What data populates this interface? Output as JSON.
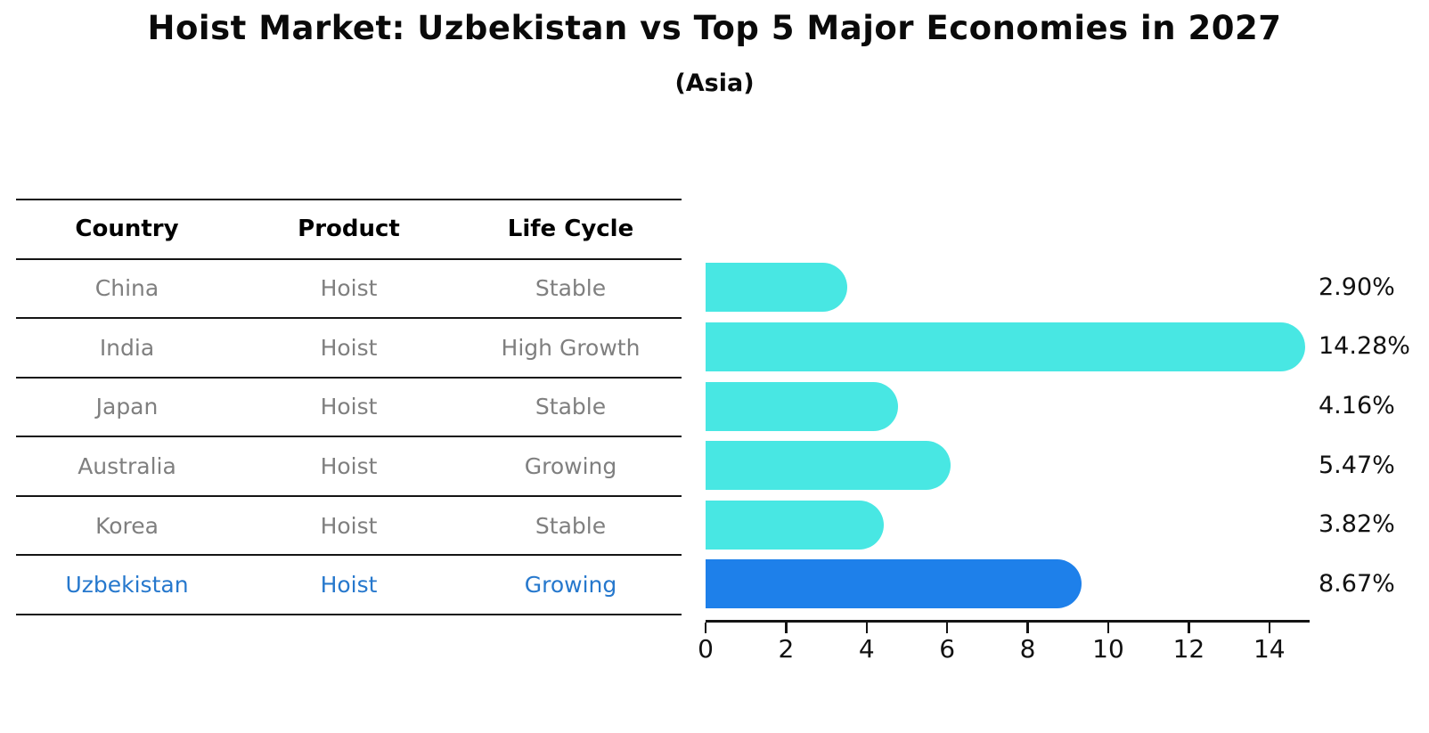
{
  "chart_data": {
    "type": "bar",
    "orientation": "horizontal",
    "title": "Hoist Market: Uzbekistan vs Top 5 Major Economies in 2027",
    "subtitle": "(Asia)",
    "categories": [
      "China",
      "India",
      "Japan",
      "Australia",
      "Korea",
      "Uzbekistan"
    ],
    "values": [
      2.9,
      14.28,
      4.16,
      5.47,
      3.82,
      8.67
    ],
    "value_labels": [
      "2.90%",
      "14.28%",
      "4.16%",
      "5.47%",
      "3.82%",
      "8.67%"
    ],
    "highlight_index": 5,
    "xlim": [
      0,
      15
    ],
    "x_ticks": [
      0,
      2,
      4,
      6,
      8,
      10,
      12,
      14
    ],
    "grid": false,
    "legend": "none",
    "table": {
      "headers": [
        "Country",
        "Product",
        "Life Cycle"
      ],
      "rows": [
        [
          "China",
          "Hoist",
          "Stable"
        ],
        [
          "India",
          "Hoist",
          "High Growth"
        ],
        [
          "Japan",
          "Hoist",
          "Stable"
        ],
        [
          "Australia",
          "Hoist",
          "Growing"
        ],
        [
          "Korea",
          "Hoist",
          "Stable"
        ],
        [
          "Uzbekistan",
          "Hoist",
          "Growing"
        ]
      ]
    },
    "colors": {
      "bar": "#48e7e3",
      "highlight_bar": "#1e80ea",
      "highlight_text": "#2678cd",
      "table_text": "#7f7f7f",
      "header_text": "#000000",
      "axis": "#141414"
    }
  }
}
